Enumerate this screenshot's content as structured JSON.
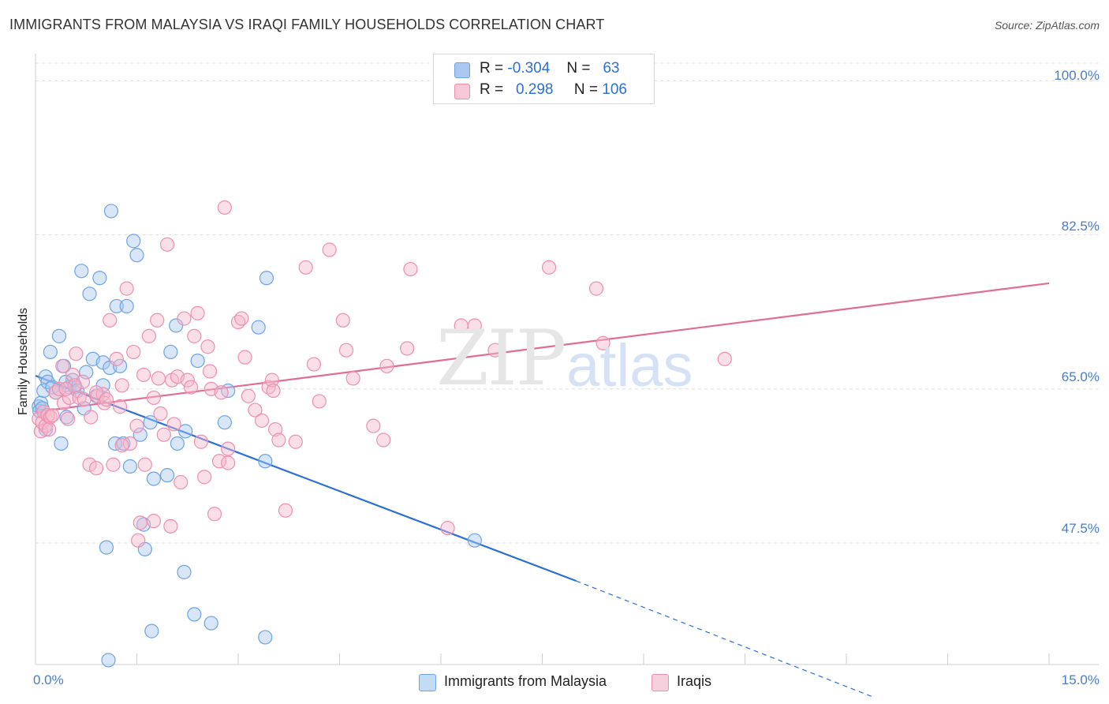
{
  "header": {
    "title": "IMMIGRANTS FROM MALAYSIA VS IRAQI FAMILY HOUSEHOLDS CORRELATION CHART",
    "source": "Source: ZipAtlas.com"
  },
  "watermark": {
    "zip": "ZIP",
    "atlas": "atlas"
  },
  "legend": {
    "rows": [
      {
        "r_label": "R =",
        "r_value": "-0.304",
        "n_label": "N =",
        "n_value": "63",
        "color": "#a8c8f0"
      },
      {
        "r_label": "R =",
        "r_value": "0.298",
        "n_label": "N =",
        "n_value": "106",
        "color": "#f7b8cc"
      }
    ]
  },
  "bottom_legend": [
    {
      "label": "Immigrants from Malaysia",
      "color": "#a8c8f0"
    },
    {
      "label": "Iraqis",
      "color": "#f7b8cc"
    }
  ],
  "chart_data": {
    "type": "scatter",
    "xlabel": "",
    "ylabel": "Family Households",
    "xlim": [
      0,
      15
    ],
    "ylim": [
      33.7,
      102
    ],
    "x_tick_labels": [
      "0.0%",
      "15.0%"
    ],
    "y_ticks": [
      47.5,
      65.0,
      82.5,
      100.0
    ],
    "y_tick_labels": [
      "47.5%",
      "65.0%",
      "82.5%",
      "100.0%"
    ],
    "grid": true,
    "legend_position": "top-center",
    "series": [
      {
        "name": "Immigrants from Malaysia",
        "color": "#6ea3e6",
        "fill": "#a8c8f0",
        "trend": {
          "x0": 0,
          "y0": 66.5,
          "x1": 8.0,
          "y1": 43.2,
          "dash_x1": 12.4,
          "dash_y1": 30.0,
          "color": "#2d6fd6"
        },
        "points": [
          [
            0.05,
            63.0
          ],
          [
            0.06,
            62.5
          ],
          [
            0.08,
            63.4
          ],
          [
            0.1,
            62.8
          ],
          [
            0.12,
            64.8
          ],
          [
            0.15,
            66.4
          ],
          [
            0.18,
            65.8
          ],
          [
            0.22,
            69.2
          ],
          [
            0.25,
            65.2
          ],
          [
            0.3,
            64.6
          ],
          [
            0.35,
            71.0
          ],
          [
            0.38,
            58.8
          ],
          [
            0.42,
            67.6
          ],
          [
            0.46,
            61.8
          ],
          [
            0.5,
            65.2
          ],
          [
            0.55,
            66.0
          ],
          [
            0.58,
            65.2
          ],
          [
            0.62,
            64.8
          ],
          [
            0.68,
            78.4
          ],
          [
            0.72,
            62.8
          ],
          [
            0.75,
            66.9
          ],
          [
            0.8,
            75.8
          ],
          [
            0.85,
            68.4
          ],
          [
            0.9,
            64.2
          ],
          [
            0.95,
            77.6
          ],
          [
            1.0,
            68.0
          ],
          [
            1.05,
            47.0
          ],
          [
            1.1,
            67.4
          ],
          [
            1.12,
            85.2
          ],
          [
            1.18,
            58.8
          ],
          [
            1.2,
            74.4
          ],
          [
            1.25,
            67.6
          ],
          [
            1.3,
            58.8
          ],
          [
            1.35,
            74.4
          ],
          [
            1.4,
            56.2
          ],
          [
            1.45,
            81.8
          ],
          [
            1.5,
            80.2
          ],
          [
            1.55,
            59.8
          ],
          [
            1.6,
            49.6
          ],
          [
            1.62,
            46.8
          ],
          [
            1.7,
            61.2
          ],
          [
            1.72,
            37.5
          ],
          [
            1.75,
            54.8
          ],
          [
            1.95,
            55.2
          ],
          [
            2.0,
            69.2
          ],
          [
            2.08,
            72.2
          ],
          [
            2.1,
            58.8
          ],
          [
            2.2,
            44.2
          ],
          [
            2.22,
            60.2
          ],
          [
            2.35,
            39.4
          ],
          [
            2.4,
            68.2
          ],
          [
            2.6,
            38.4
          ],
          [
            2.8,
            61.2
          ],
          [
            2.85,
            64.8
          ],
          [
            3.3,
            72.0
          ],
          [
            3.4,
            56.8
          ],
          [
            3.42,
            77.6
          ],
          [
            3.4,
            36.8
          ],
          [
            6.5,
            47.8
          ],
          [
            1.08,
            34.2
          ],
          [
            0.15,
            60.4
          ],
          [
            0.45,
            65.8
          ],
          [
            1.0,
            65.4
          ]
        ]
      },
      {
        "name": "Iraqis",
        "color": "#ee8fae",
        "fill": "#f7b8cc",
        "trend": {
          "x0": 0,
          "y0": 62.4,
          "x1": 15,
          "y1": 77.0,
          "color": "#e06d95"
        },
        "points": [
          [
            0.05,
            61.6
          ],
          [
            0.08,
            60.2
          ],
          [
            0.1,
            61.2
          ],
          [
            0.12,
            62.4
          ],
          [
            0.15,
            60.8
          ],
          [
            0.18,
            62.0
          ],
          [
            0.2,
            60.4
          ],
          [
            0.22,
            61.8
          ],
          [
            0.3,
            64.6
          ],
          [
            0.35,
            65.0
          ],
          [
            0.4,
            67.6
          ],
          [
            0.42,
            63.4
          ],
          [
            0.48,
            61.6
          ],
          [
            0.5,
            64.0
          ],
          [
            0.55,
            66.6
          ],
          [
            0.6,
            69.0
          ],
          [
            0.65,
            64.0
          ],
          [
            0.7,
            65.8
          ],
          [
            0.72,
            63.8
          ],
          [
            0.8,
            56.4
          ],
          [
            0.82,
            61.8
          ],
          [
            0.9,
            56.0
          ],
          [
            0.92,
            64.2
          ],
          [
            1.0,
            64.4
          ],
          [
            1.02,
            63.4
          ],
          [
            1.1,
            72.8
          ],
          [
            1.15,
            56.4
          ],
          [
            1.2,
            68.4
          ],
          [
            1.25,
            63.0
          ],
          [
            1.28,
            65.4
          ],
          [
            1.35,
            76.4
          ],
          [
            1.4,
            58.8
          ],
          [
            1.45,
            69.2
          ],
          [
            1.5,
            60.8
          ],
          [
            1.52,
            47.8
          ],
          [
            1.55,
            49.8
          ],
          [
            1.6,
            66.6
          ],
          [
            1.62,
            56.4
          ],
          [
            1.68,
            71.0
          ],
          [
            1.75,
            64.0
          ],
          [
            1.8,
            72.8
          ],
          [
            1.82,
            66.2
          ],
          [
            1.85,
            62.2
          ],
          [
            1.9,
            59.8
          ],
          [
            1.95,
            81.4
          ],
          [
            2.0,
            49.4
          ],
          [
            2.02,
            66.0
          ],
          [
            2.05,
            61.0
          ],
          [
            2.1,
            66.4
          ],
          [
            2.15,
            54.4
          ],
          [
            2.2,
            73.0
          ],
          [
            2.25,
            66.0
          ],
          [
            2.3,
            65.2
          ],
          [
            2.35,
            71.0
          ],
          [
            2.4,
            73.6
          ],
          [
            2.45,
            59.0
          ],
          [
            2.5,
            55.0
          ],
          [
            2.55,
            69.8
          ],
          [
            2.58,
            67.0
          ],
          [
            2.6,
            65.0
          ],
          [
            2.65,
            50.8
          ],
          [
            2.72,
            56.8
          ],
          [
            2.75,
            64.6
          ],
          [
            2.8,
            85.6
          ],
          [
            2.85,
            58.2
          ],
          [
            3.0,
            72.6
          ],
          [
            3.05,
            73.0
          ],
          [
            3.1,
            68.6
          ],
          [
            3.15,
            64.2
          ],
          [
            3.25,
            62.6
          ],
          [
            3.35,
            61.4
          ],
          [
            3.45,
            65.2
          ],
          [
            3.5,
            66.0
          ],
          [
            3.52,
            64.8
          ],
          [
            3.55,
            60.4
          ],
          [
            3.6,
            59.2
          ],
          [
            3.7,
            51.2
          ],
          [
            3.85,
            59.0
          ],
          [
            4.0,
            78.8
          ],
          [
            4.12,
            67.8
          ],
          [
            4.2,
            63.6
          ],
          [
            4.35,
            80.8
          ],
          [
            4.55,
            72.8
          ],
          [
            4.6,
            69.4
          ],
          [
            4.7,
            66.2
          ],
          [
            5.0,
            60.8
          ],
          [
            5.15,
            59.2
          ],
          [
            5.2,
            67.6
          ],
          [
            5.5,
            69.6
          ],
          [
            5.55,
            78.6
          ],
          [
            6.1,
            49.2
          ],
          [
            6.3,
            72.2
          ],
          [
            6.5,
            72.2
          ],
          [
            6.8,
            69.4
          ],
          [
            7.6,
            78.8
          ],
          [
            8.3,
            76.4
          ],
          [
            8.4,
            70.2
          ],
          [
            10.2,
            68.4
          ],
          [
            0.25,
            62.0
          ],
          [
            0.58,
            65.4
          ],
          [
            0.9,
            64.6
          ],
          [
            1.05,
            63.8
          ],
          [
            1.75,
            50.0
          ],
          [
            2.85,
            56.6
          ],
          [
            0.45,
            65.0
          ],
          [
            1.28,
            58.6
          ]
        ]
      }
    ]
  }
}
